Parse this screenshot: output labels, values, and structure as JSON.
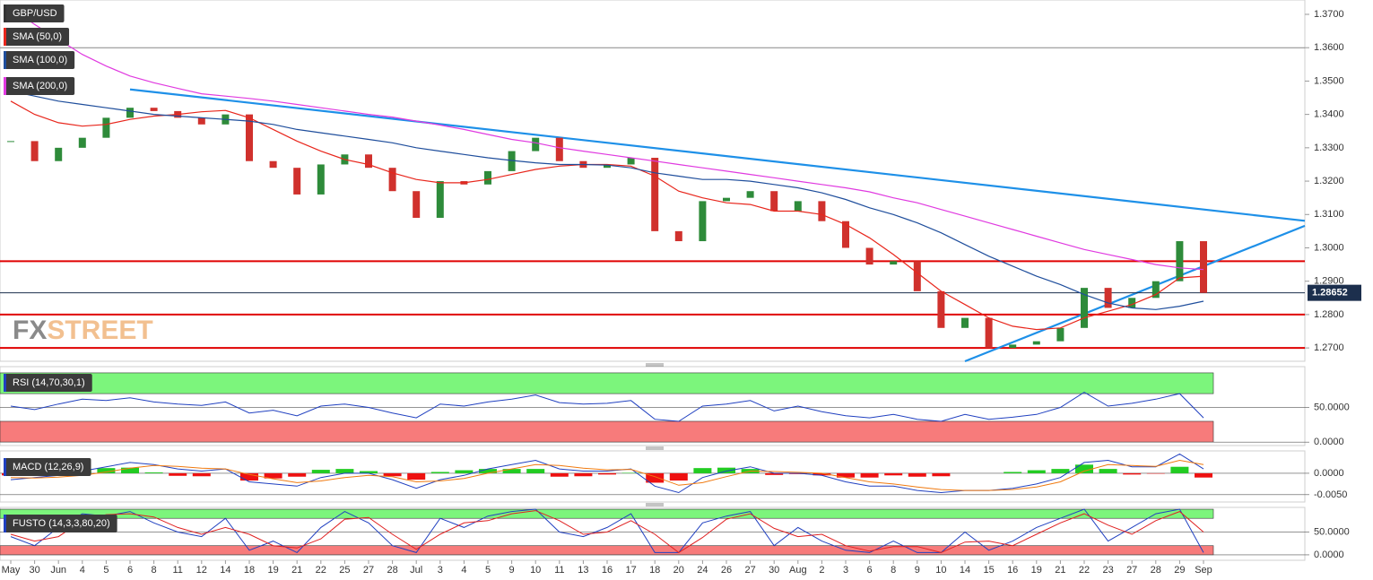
{
  "chart_data": {
    "type": "candlestick",
    "title": "GBP/USD",
    "categories": [
      "May",
      "30",
      "Jun",
      "4",
      "5",
      "6",
      "8",
      "11",
      "12",
      "14",
      "18",
      "19",
      "21",
      "22",
      "25",
      "27",
      "28",
      "Jul",
      "3",
      "4",
      "5",
      "9",
      "10",
      "11",
      "13",
      "16",
      "17",
      "18",
      "20",
      "24",
      "26",
      "27",
      "30",
      "Aug",
      "2",
      "3",
      "6",
      "8",
      "9",
      "10",
      "14",
      "15",
      "16",
      "19",
      "21",
      "22",
      "23",
      "27",
      "28",
      "29",
      "Sep"
    ],
    "closes": [
      1.332,
      1.326,
      1.33,
      1.333,
      1.339,
      1.342,
      1.341,
      1.339,
      1.337,
      1.34,
      1.326,
      1.324,
      1.316,
      1.325,
      1.328,
      1.324,
      1.317,
      1.309,
      1.32,
      1.319,
      1.323,
      1.329,
      1.333,
      1.326,
      1.324,
      1.325,
      1.327,
      1.305,
      1.302,
      1.314,
      1.315,
      1.317,
      1.311,
      1.314,
      1.308,
      1.3,
      1.295,
      1.296,
      1.287,
      1.276,
      1.279,
      1.27,
      1.271,
      1.272,
      1.276,
      1.288,
      1.282,
      1.285,
      1.29,
      1.302,
      1.2865
    ],
    "up_color": "#2e8b3a",
    "down_color": "#d0312d",
    "ylim": [
      1.266,
      1.3743
    ],
    "yticks": [
      {
        "value": 1.27,
        "label": "1.2700"
      },
      {
        "value": 1.28,
        "label": "1.2800"
      },
      {
        "value": 1.29,
        "label": "1.2900"
      },
      {
        "value": 1.3,
        "label": "1.3000"
      },
      {
        "value": 1.31,
        "label": "1.3100"
      },
      {
        "value": 1.32,
        "label": "1.3200"
      },
      {
        "value": 1.33,
        "label": "1.3300"
      },
      {
        "value": 1.34,
        "label": "1.3400"
      },
      {
        "value": 1.35,
        "label": "1.3500"
      },
      {
        "value": 1.36,
        "label": "1.3600"
      },
      {
        "value": 1.37,
        "label": "1.3700"
      }
    ],
    "series": [
      {
        "name": "SMA (50,0)",
        "color": "#e8261c",
        "values": [
          1.344,
          1.34,
          1.3375,
          1.3365,
          1.337,
          1.3385,
          1.3395,
          1.34,
          1.3408,
          1.3412,
          1.339,
          1.3355,
          1.332,
          1.329,
          1.3265,
          1.325,
          1.3225,
          1.3205,
          1.3195,
          1.3195,
          1.3205,
          1.322,
          1.3235,
          1.3245,
          1.325,
          1.325,
          1.3245,
          1.3215,
          1.317,
          1.315,
          1.3135,
          1.313,
          1.311,
          1.311,
          1.31,
          1.307,
          1.303,
          1.298,
          1.2925,
          1.287,
          1.283,
          1.279,
          1.2765,
          1.2755,
          1.276,
          1.279,
          1.281,
          1.283,
          1.286,
          1.291,
          1.2915
        ]
      },
      {
        "name": "SMA (100,0)",
        "color": "#1f4e9c",
        "values": [
          1.347,
          1.3455,
          1.344,
          1.343,
          1.342,
          1.341,
          1.34,
          1.3395,
          1.339,
          1.3385,
          1.338,
          1.337,
          1.3355,
          1.3345,
          1.3335,
          1.3325,
          1.3315,
          1.33,
          1.329,
          1.328,
          1.327,
          1.3262,
          1.3255,
          1.325,
          1.325,
          1.3248,
          1.324,
          1.3225,
          1.3215,
          1.3205,
          1.3205,
          1.32,
          1.319,
          1.318,
          1.3165,
          1.3145,
          1.312,
          1.31,
          1.3075,
          1.3045,
          1.301,
          1.2975,
          1.2945,
          1.2915,
          1.289,
          1.286,
          1.2835,
          1.282,
          1.2815,
          1.2825,
          1.284
        ]
      },
      {
        "name": "SMA (200,0)",
        "color": "#e03ae0",
        "values": [
          1.372,
          1.367,
          1.3625,
          1.358,
          1.3545,
          1.3515,
          1.3495,
          1.3478,
          1.3462,
          1.3455,
          1.3448,
          1.344,
          1.343,
          1.342,
          1.341,
          1.34,
          1.3392,
          1.338,
          1.3368,
          1.3355,
          1.334,
          1.3325,
          1.3315,
          1.33,
          1.329,
          1.328,
          1.327,
          1.326,
          1.325,
          1.324,
          1.323,
          1.322,
          1.321,
          1.32,
          1.319,
          1.318,
          1.3168,
          1.315,
          1.3135,
          1.3115,
          1.3095,
          1.3075,
          1.3055,
          1.3035,
          1.3015,
          1.2995,
          1.298,
          1.2965,
          1.295,
          1.294,
          1.2935
        ]
      }
    ],
    "levels": [
      {
        "value": 1.36,
        "color": "#888888"
      },
      {
        "value": 1.296,
        "color": "#e00000"
      },
      {
        "value": 1.28,
        "color": "#e00000"
      },
      {
        "value": 1.27,
        "color": "#e00000"
      }
    ],
    "current": {
      "value": 1.28652,
      "label": "1.28652",
      "color": "#1c2f4d"
    },
    "trendlines": [
      {
        "color": "#1e90e8",
        "from": {
          "category": 5,
          "value": 1.3475
        },
        "to": {
          "category": 50,
          "value": 1.3115
        }
      },
      {
        "color": "#1e90e8",
        "from": {
          "category": 40,
          "value": 1.266
        },
        "to": {
          "category": 50,
          "value": 1.2945
        }
      }
    ],
    "watermark": [
      "FX",
      "STREET"
    ],
    "indicators": [
      {
        "type": "line",
        "name": "RSI (14,70,30,1)",
        "ylim": [
          -5,
          109
        ],
        "yticks": [
          {
            "value": 0,
            "label": "0.0000"
          },
          {
            "value": 50,
            "label": "50.0000"
          }
        ],
        "bands": [
          {
            "from": 70,
            "to": 100,
            "color": "#7cf57c"
          },
          {
            "from": 0,
            "to": 30,
            "color": "#f77b7b"
          }
        ],
        "series": [
          {
            "color": "#2040c0",
            "values": [
              52,
              47,
              55,
              62,
              60,
              64,
              58,
              55,
              53,
              58,
              42,
              46,
              38,
              52,
              55,
              50,
              42,
              35,
              55,
              52,
              58,
              62,
              68,
              57,
              55,
              56,
              60,
              33,
              30,
              52,
              55,
              60,
              45,
              52,
              44,
              38,
              35,
              40,
              33,
              30,
              40,
              33,
              36,
              40,
              50,
              72,
              52,
              56,
              62,
              70,
              35
            ]
          }
        ]
      },
      {
        "type": "macd",
        "name": "MACD (12,26,9)",
        "ylim": [
          -0.0067,
          0.0052
        ],
        "yticks": [
          {
            "value": -0.005,
            "label": "-0.0050"
          },
          {
            "value": 0,
            "label": "0.0000"
          }
        ],
        "up_color": "#22cc22",
        "down_color": "#ee1111",
        "series": [
          {
            "color": "#2040c0",
            "values": [
              -0.0015,
              -0.001,
              -0.0005,
              0.0005,
              0.0015,
              0.0025,
              0.002,
              0.001,
              0.0005,
              0.001,
              -0.002,
              -0.0025,
              -0.003,
              -0.001,
              0.0,
              0.0,
              -0.0015,
              -0.0035,
              -0.0015,
              -0.0005,
              0.001,
              0.002,
              0.003,
              0.001,
              0.0005,
              0.0005,
              0.001,
              -0.003,
              -0.0045,
              -0.001,
              0.0005,
              0.0015,
              0.0,
              0.0,
              -0.0005,
              -0.002,
              -0.003,
              -0.003,
              -0.004,
              -0.0045,
              -0.004,
              -0.004,
              -0.0035,
              -0.0025,
              -0.001,
              0.0025,
              0.003,
              0.0015,
              0.0015,
              0.0045,
              0.001
            ]
          },
          {
            "color": "#f07a10",
            "values": [
              -0.001,
              -0.0011,
              -0.0009,
              -0.0005,
              0.0003,
              0.0012,
              0.0018,
              0.0016,
              0.0012,
              0.001,
              -0.0003,
              -0.0013,
              -0.0022,
              -0.0018,
              -0.001,
              -0.0005,
              -0.0008,
              -0.002,
              -0.0018,
              -0.0012,
              0.0,
              0.001,
              0.002,
              0.0018,
              0.0012,
              0.0008,
              0.0009,
              -0.0008,
              -0.0028,
              -0.0022,
              -0.0008,
              0.0005,
              0.0004,
              0.0002,
              0.0,
              -0.001,
              -0.002,
              -0.0025,
              -0.0032,
              -0.0038,
              -0.004,
              -0.004,
              -0.0038,
              -0.0032,
              -0.002,
              0.0005,
              0.002,
              0.0018,
              0.0016,
              0.003,
              0.002
            ]
          }
        ]
      },
      {
        "type": "line",
        "name": "FUSTO (14,3,3,80,20)",
        "ylim": [
          -12,
          104
        ],
        "yticks": [
          {
            "value": 0,
            "label": "0.0000"
          },
          {
            "value": 50,
            "label": "50.0000"
          }
        ],
        "bands": [
          {
            "from": 80,
            "to": 100,
            "color": "#7cf57c"
          },
          {
            "from": 0,
            "to": 20,
            "color": "#f77b7b"
          }
        ],
        "series": [
          {
            "color": "#2040c0",
            "values": [
              40,
              20,
              60,
              90,
              85,
              95,
              70,
              50,
              40,
              80,
              10,
              30,
              5,
              60,
              95,
              70,
              20,
              5,
              80,
              60,
              85,
              95,
              100,
              50,
              40,
              60,
              90,
              5,
              5,
              70,
              85,
              95,
              20,
              60,
              30,
              10,
              5,
              30,
              5,
              5,
              50,
              10,
              30,
              60,
              80,
              100,
              30,
              60,
              90,
              100,
              5
            ]
          },
          {
            "color": "#e02020",
            "values": [
              45,
              30,
              40,
              75,
              88,
              90,
              83,
              60,
              45,
              60,
              45,
              20,
              15,
              35,
              78,
              82,
              45,
              12,
              45,
              70,
              75,
              90,
              97,
              75,
              45,
              50,
              75,
              45,
              5,
              38,
              78,
              90,
              58,
              40,
              45,
              20,
              8,
              18,
              18,
              5,
              28,
              30,
              20,
              45,
              70,
              90,
              65,
              45,
              75,
              95,
              50
            ]
          }
        ]
      }
    ]
  }
}
